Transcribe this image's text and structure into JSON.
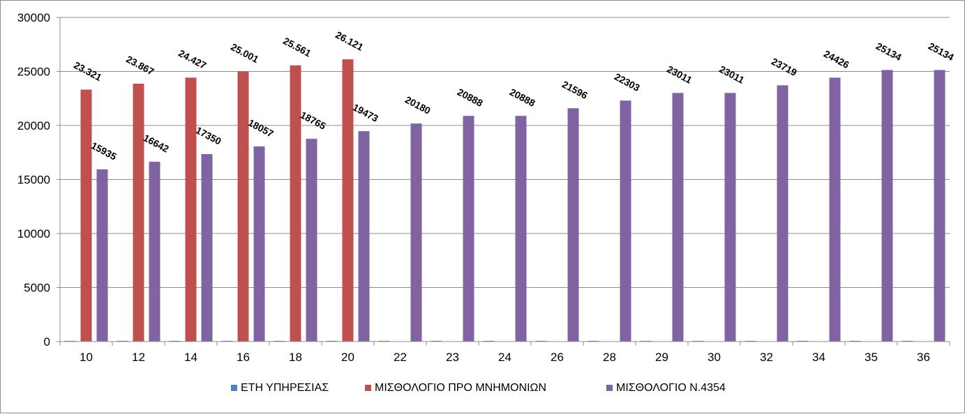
{
  "chart_data": {
    "type": "bar",
    "categories": [
      "10",
      "12",
      "14",
      "16",
      "18",
      "20",
      "22",
      "23",
      "24",
      "26",
      "28",
      "29",
      "30",
      "32",
      "34",
      "35",
      "36"
    ],
    "series": [
      {
        "name": "ΕΤΗ ΥΠΗΡΕΣΙΑΣ",
        "color": "#4f81bd",
        "values": [
          10,
          12,
          14,
          16,
          18,
          20,
          22,
          23,
          24,
          26,
          28,
          29,
          30,
          32,
          34,
          35,
          36
        ],
        "labels": null
      },
      {
        "name": "ΜΙΣΘΟΛΟΓΙΟ ΠΡΟ ΜΝΗΜΟΝΙΩΝ",
        "color": "#c0504d",
        "values": [
          23321,
          23867,
          24427,
          25001,
          25561,
          26121,
          null,
          null,
          null,
          null,
          null,
          null,
          null,
          null,
          null,
          null,
          null
        ],
        "labels": [
          "23.321",
          "23.867",
          "24.427",
          "25.001",
          "25.561",
          "26.121",
          null,
          null,
          null,
          null,
          null,
          null,
          null,
          null,
          null,
          null,
          null
        ]
      },
      {
        "name": "ΜΙΣΘΟΛΟΓΙΟ Ν.4354",
        "color": "#8064a2",
        "values": [
          15935,
          16642,
          17350,
          18057,
          18765,
          19473,
          20180,
          20888,
          20888,
          21596,
          22303,
          23011,
          23011,
          23719,
          24426,
          25134,
          25134
        ],
        "labels": [
          "15935",
          "16642",
          "17350",
          "18057",
          "18765",
          "19473",
          "20180",
          "20888",
          "20888",
          "21596",
          "22303",
          "23011",
          "23011",
          "23719",
          "24426",
          "25134",
          "25134"
        ]
      }
    ],
    "yticks": [
      "0",
      "5000",
      "10000",
      "15000",
      "20000",
      "25000",
      "30000"
    ],
    "ylim": [
      0,
      30000
    ],
    "grid": true,
    "legend_position": "bottom",
    "title": "",
    "xlabel": "",
    "ylabel": ""
  }
}
